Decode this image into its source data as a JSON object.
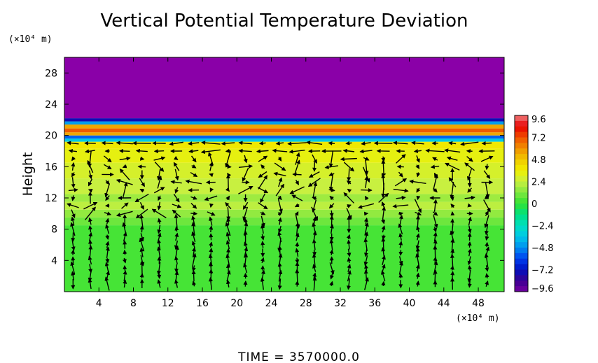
{
  "chart_data": {
    "type": "heatmap",
    "title": "Vertical Potential Temperature Deviation",
    "ylabel": "Height",
    "y_unit": "(×10⁴ m)",
    "x_unit": "(×10⁴ m)",
    "footer": "TIME  =  3570000.0",
    "xlim": [
      0,
      51
    ],
    "ylim": [
      0,
      30
    ],
    "x_ticks": [
      4,
      8,
      12,
      16,
      20,
      24,
      28,
      32,
      36,
      40,
      44,
      48
    ],
    "x_tick_labels": [
      "4",
      "8",
      "12",
      "16",
      "20",
      "24",
      "28",
      "32",
      "36",
      "40",
      "44",
      "48"
    ],
    "y_ticks": [
      4,
      8,
      12,
      16,
      20,
      24,
      28
    ],
    "y_tick_labels": [
      "4",
      "8",
      "12",
      "16",
      "20",
      "24",
      "28"
    ],
    "colorbar": {
      "range": [
        -9.6,
        9.6
      ],
      "labels": [
        "9.6",
        "7.2",
        "4.8",
        "2.4",
        "0",
        "−2.4",
        "−4.8",
        "−7.2",
        "−9.6"
      ],
      "label_values": [
        9.6,
        7.2,
        4.8,
        2.4,
        0,
        -2.4,
        -4.8,
        -7.2,
        -9.6
      ]
    },
    "field_layers": [
      {
        "y0": 0,
        "y1": 8.5,
        "value": 0.3
      },
      {
        "y0": 8.5,
        "y1": 9.5,
        "value": 0.9
      },
      {
        "y0": 9.5,
        "y1": 10.5,
        "value": 1.5
      },
      {
        "y0": 10.5,
        "y1": 11.5,
        "value": 2.2
      },
      {
        "y0": 11.5,
        "y1": 12.5,
        "value": 1.7
      },
      {
        "y0": 12.5,
        "y1": 14.5,
        "value": 2.4
      },
      {
        "y0": 14.5,
        "y1": 16.5,
        "value": 2.8
      },
      {
        "y0": 16.5,
        "y1": 18.3,
        "value": 3.3
      },
      {
        "y0": 18.3,
        "y1": 19.2,
        "value": 3.8
      },
      {
        "y0": 19.2,
        "y1": 19.6,
        "value": -3.5
      },
      {
        "y0": 19.6,
        "y1": 20.0,
        "value": -5.5
      },
      {
        "y0": 20.0,
        "y1": 20.4,
        "value": 5.5
      },
      {
        "y0": 20.4,
        "y1": 20.9,
        "value": 7.0
      },
      {
        "y0": 20.9,
        "y1": 21.4,
        "value": 5.5
      },
      {
        "y0": 21.4,
        "y1": 21.8,
        "value": -4.5
      },
      {
        "y0": 21.8,
        "y1": 22.2,
        "value": -7.5
      },
      {
        "y0": 22.2,
        "y1": 30,
        "value": -10.0
      }
    ],
    "vectors": {
      "x_spacing": 2,
      "y_levels": [
        1,
        2,
        3,
        4,
        5,
        6,
        7,
        8,
        9,
        10,
        11,
        12,
        13,
        14,
        15,
        16,
        17,
        18,
        19
      ],
      "description_free": true
    }
  }
}
